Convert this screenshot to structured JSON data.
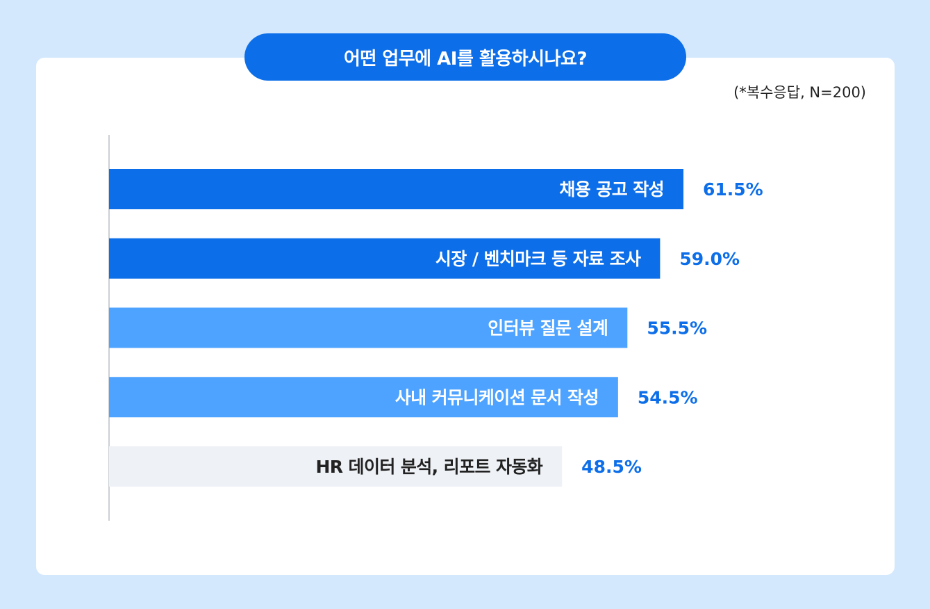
{
  "header": {
    "title": "어떤 업무에 AI를 활용하시나요?",
    "note": "(*복수응답, N=200)"
  },
  "chart_data": {
    "type": "bar",
    "orientation": "horizontal",
    "title": "어떤 업무에 AI를 활용하시나요?",
    "subtitle": "(*복수응답, N=200)",
    "categories": [
      "채용 공고 작성",
      "시장 / 벤치마크 등 자료 조사",
      "인터뷰 질문 설계",
      "사내 커뮤니케이션 문서 작성",
      "HR 데이터 분석, 리포트 자동화"
    ],
    "values": [
      61.5,
      59.0,
      55.5,
      54.5,
      48.5
    ],
    "value_labels": [
      "61.5%",
      "59.0%",
      "55.5%",
      "54.5%",
      "48.5%"
    ],
    "unit": "%",
    "bar_colors": [
      "#0c6ee8",
      "#0c6ee8",
      "#4da3ff",
      "#4da3ff",
      "#eef1f5"
    ],
    "label_colors": [
      "#ffffff",
      "#ffffff",
      "#ffffff",
      "#ffffff",
      "#222222"
    ],
    "value_label_color": "#0c6ee8",
    "xlim": [
      0,
      100
    ],
    "grid": false,
    "legend": "none"
  }
}
